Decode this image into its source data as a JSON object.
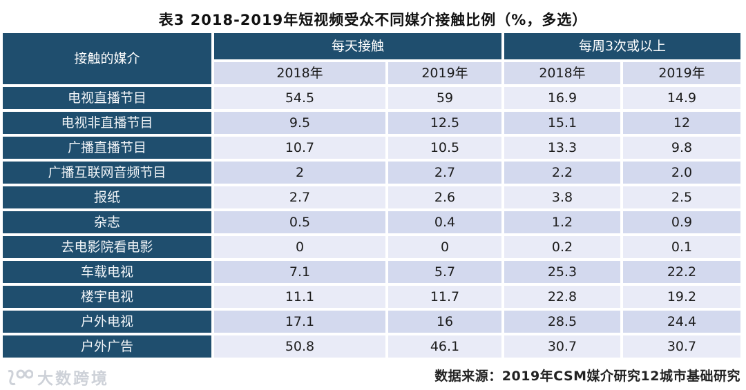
{
  "title": "表3  2018-2019年短视频受众不同媒介接触比例（%，多选）",
  "table": {
    "corner_header": "接触的媒介",
    "group_headers": [
      {
        "label": "每天接触"
      },
      {
        "label": "每周3次或以上"
      }
    ],
    "sub_headers": [
      "2018年",
      "2019年",
      "2018年",
      "2019年"
    ],
    "rows": [
      {
        "label": "电视直播节目",
        "values": [
          "54.5",
          "59",
          "16.9",
          "14.9"
        ]
      },
      {
        "label": "电视非直播节目",
        "values": [
          "9.5",
          "12.5",
          "15.1",
          "12"
        ]
      },
      {
        "label": "广播直播节目",
        "values": [
          "10.7",
          "10.5",
          "13.3",
          "9.8"
        ]
      },
      {
        "label": "广播互联网音频节目",
        "values": [
          "2",
          "2.7",
          "2.2",
          "2.0"
        ]
      },
      {
        "label": "报纸",
        "values": [
          "2.7",
          "2.6",
          "3.8",
          "2.5"
        ]
      },
      {
        "label": "杂志",
        "values": [
          "0.5",
          "0.4",
          "1.2",
          "0.9"
        ]
      },
      {
        "label": "去电影院看电影",
        "values": [
          "0",
          "0",
          "0.2",
          "0.1"
        ]
      },
      {
        "label": "车载电视",
        "values": [
          "7.1",
          "5.7",
          "25.3",
          "22.2"
        ]
      },
      {
        "label": "楼宇电视",
        "values": [
          "11.1",
          "11.7",
          "22.8",
          "19.2"
        ]
      },
      {
        "label": "户外电视",
        "values": [
          "17.1",
          "16",
          "28.5",
          "24.4"
        ]
      },
      {
        "label": "户外广告",
        "values": [
          "50.8",
          "46.1",
          "30.7",
          "30.7"
        ]
      }
    ]
  },
  "footer": {
    "source": "数据来源：2019年CSM媒介研究12城市基础研究"
  },
  "watermark": {
    "brand": "大数跨境"
  },
  "colors": {
    "header_blue": "#1f4e6e",
    "row_light": "#e9ebf7",
    "row_dark": "#d3d9ee",
    "subheader": "#d6dbee"
  },
  "chart_data": {
    "type": "table",
    "title": "表3 2018-2019年短视频受众不同媒介接触比例（%，多选）",
    "column_groups": [
      "每天接触",
      "每周3次或以上"
    ],
    "columns": [
      "接触的媒介",
      "每天接触 2018年",
      "每天接触 2019年",
      "每周3次或以上 2018年",
      "每周3次或以上 2019年"
    ],
    "categories": [
      "电视直播节目",
      "电视非直播节目",
      "广播直播节目",
      "广播互联网音频节目",
      "报纸",
      "杂志",
      "去电影院看电影",
      "车载电视",
      "楼宇电视",
      "户外电视",
      "户外广告"
    ],
    "series": [
      {
        "name": "每天接触 2018年",
        "values": [
          54.5,
          9.5,
          10.7,
          2,
          2.7,
          0.5,
          0,
          7.1,
          11.1,
          17.1,
          50.8
        ]
      },
      {
        "name": "每天接触 2019年",
        "values": [
          59,
          12.5,
          10.5,
          2.7,
          2.6,
          0.4,
          0,
          5.7,
          11.7,
          16,
          46.1
        ]
      },
      {
        "name": "每周3次或以上 2018年",
        "values": [
          16.9,
          15.1,
          13.3,
          2.2,
          3.8,
          1.2,
          0.2,
          25.3,
          22.8,
          28.5,
          30.7
        ]
      },
      {
        "name": "每周3次或以上 2019年",
        "values": [
          14.9,
          12,
          9.8,
          2.0,
          2.5,
          0.9,
          0.1,
          22.2,
          19.2,
          24.4,
          30.7
        ]
      }
    ],
    "unit": "%",
    "source": "数据来源：2019年CSM媒介研究12城市基础研究"
  }
}
